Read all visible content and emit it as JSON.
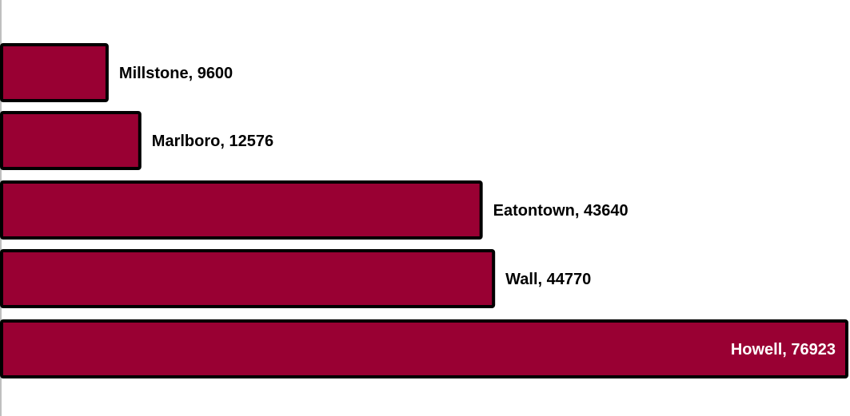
{
  "chart_data": {
    "type": "bar",
    "orientation": "horizontal",
    "categories": [
      "Millstone",
      "Marlboro",
      "Eatontown",
      "Wall",
      "Howell"
    ],
    "values": [
      9600,
      12576,
      43640,
      44770,
      76923
    ],
    "title": "",
    "xlabel": "",
    "ylabel": "",
    "xlim": [
      0,
      76923
    ],
    "grid": false,
    "legend": "none",
    "data_labels": [
      "Millstone, 9600",
      "Marlboro, 12576",
      "Eatontown, 43640",
      "Wall, 44770",
      "Howell, 76923"
    ],
    "colors": {
      "bar_fill": "#990033",
      "bar_stroke": "#000000",
      "axis": "#bfbfbf",
      "label_outside": "#000000",
      "label_inside": "#ffffff"
    }
  }
}
